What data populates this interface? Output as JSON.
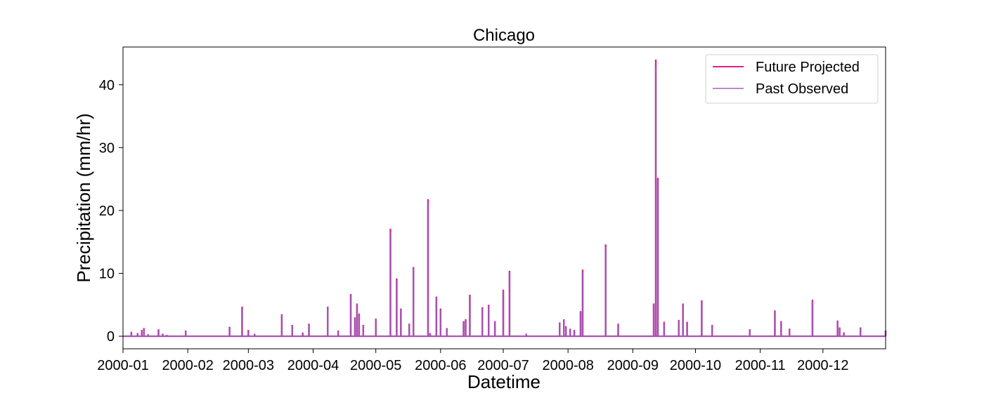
{
  "chart_data": {
    "type": "line",
    "title": "Chicago",
    "xlabel": "Datetime",
    "ylabel": "Precipitation (mm/hr)",
    "xlim": [
      "2000-01-01",
      "2000-12-31"
    ],
    "ylim": [
      -2,
      46
    ],
    "x_ticks": [
      "2000-01",
      "2000-02",
      "2000-03",
      "2000-04",
      "2000-05",
      "2000-06",
      "2000-07",
      "2000-08",
      "2000-09",
      "2000-10",
      "2000-11",
      "2000-12"
    ],
    "y_ticks": [
      0,
      10,
      20,
      30,
      40
    ],
    "grid": false,
    "legend_position": "top-right",
    "series": [
      {
        "name": "Future Projected",
        "color": "#e0218a",
        "x": [
          "2000-01-05",
          "2000-01-08",
          "2000-01-10",
          "2000-01-11",
          "2000-01-13",
          "2000-01-18",
          "2000-01-20",
          "2000-01-22",
          "2000-01-31",
          "2000-02-21",
          "2000-02-27",
          "2000-03-01",
          "2000-03-04",
          "2000-03-17",
          "2000-03-22",
          "2000-03-27",
          "2000-03-30",
          "2000-04-08",
          "2000-04-13",
          "2000-04-19",
          "2000-04-21",
          "2000-04-22",
          "2000-04-23",
          "2000-04-25",
          "2000-05-01",
          "2000-05-08",
          "2000-05-11",
          "2000-05-13",
          "2000-05-17",
          "2000-05-19",
          "2000-05-26",
          "2000-05-27",
          "2000-05-30",
          "2000-06-01",
          "2000-06-04",
          "2000-06-12",
          "2000-06-13",
          "2000-06-15",
          "2000-06-21",
          "2000-06-24",
          "2000-06-27",
          "2000-07-01",
          "2000-07-04",
          "2000-07-12",
          "2000-07-28",
          "2000-07-30",
          "2000-07-31",
          "2000-08-02",
          "2000-08-04",
          "2000-08-07",
          "2000-08-08",
          "2000-08-19",
          "2000-08-25",
          "2000-09-11",
          "2000-09-12",
          "2000-09-13",
          "2000-09-16",
          "2000-09-23",
          "2000-09-25",
          "2000-09-27",
          "2000-10-04",
          "2000-10-09",
          "2000-10-27",
          "2000-11-08",
          "2000-11-11",
          "2000-11-15",
          "2000-11-26",
          "2000-12-08",
          "2000-12-09",
          "2000-12-11",
          "2000-12-19",
          "2000-12-31"
        ],
        "y": [
          0.7,
          0.5,
          1.0,
          1.3,
          0.3,
          1.1,
          0.4,
          0.2,
          0.9,
          1.5,
          4.7,
          1.0,
          0.4,
          3.5,
          1.8,
          0.6,
          2.0,
          4.7,
          0.9,
          6.7,
          3.0,
          5.2,
          3.6,
          1.8,
          2.8,
          17.1,
          9.2,
          4.4,
          2.0,
          11.0,
          21.8,
          0.5,
          6.3,
          4.4,
          1.3,
          2.4,
          2.7,
          6.6,
          4.6,
          5.0,
          2.4,
          7.4,
          10.4,
          0.4,
          2.2,
          2.7,
          1.6,
          1.2,
          1.0,
          4.0,
          10.6,
          14.6,
          2.0,
          5.2,
          44.0,
          25.2,
          2.3,
          2.6,
          5.2,
          2.3,
          5.7,
          1.8,
          1.1,
          4.1,
          2.4,
          1.2,
          5.8,
          2.5,
          1.4,
          0.6,
          1.4,
          0.9
        ]
      },
      {
        "name": "Past Observed",
        "color": "#9b59b6",
        "x": [
          "2000-01-05",
          "2000-01-08",
          "2000-01-10",
          "2000-01-11",
          "2000-01-13",
          "2000-01-18",
          "2000-01-20",
          "2000-01-22",
          "2000-01-31",
          "2000-02-21",
          "2000-02-27",
          "2000-03-01",
          "2000-03-04",
          "2000-03-17",
          "2000-03-22",
          "2000-03-27",
          "2000-03-30",
          "2000-04-08",
          "2000-04-13",
          "2000-04-19",
          "2000-04-21",
          "2000-04-22",
          "2000-04-23",
          "2000-04-25",
          "2000-05-01",
          "2000-05-08",
          "2000-05-11",
          "2000-05-13",
          "2000-05-17",
          "2000-05-19",
          "2000-05-26",
          "2000-05-27",
          "2000-05-30",
          "2000-06-01",
          "2000-06-04",
          "2000-06-12",
          "2000-06-13",
          "2000-06-15",
          "2000-06-21",
          "2000-06-24",
          "2000-06-27",
          "2000-07-01",
          "2000-07-04",
          "2000-07-12",
          "2000-07-28",
          "2000-07-30",
          "2000-07-31",
          "2000-08-02",
          "2000-08-04",
          "2000-08-07",
          "2000-08-08",
          "2000-08-19",
          "2000-08-25",
          "2000-09-11",
          "2000-09-12",
          "2000-09-13",
          "2000-09-16",
          "2000-09-23",
          "2000-09-25",
          "2000-09-27",
          "2000-10-04",
          "2000-10-09",
          "2000-10-27",
          "2000-11-08",
          "2000-11-11",
          "2000-11-15",
          "2000-11-26",
          "2000-12-08",
          "2000-12-09",
          "2000-12-11",
          "2000-12-19",
          "2000-12-31"
        ],
        "y": [
          0.6,
          0.4,
          0.9,
          1.2,
          0.3,
          1.0,
          0.4,
          0.2,
          0.8,
          1.4,
          4.5,
          0.9,
          0.4,
          3.3,
          1.7,
          0.5,
          1.9,
          4.5,
          0.8,
          6.5,
          2.9,
          5.0,
          3.4,
          1.7,
          2.7,
          16.6,
          9.0,
          4.2,
          1.9,
          10.8,
          21.2,
          0.5,
          6.1,
          4.2,
          1.2,
          2.3,
          2.6,
          6.4,
          4.4,
          4.8,
          2.3,
          7.2,
          10.2,
          0.4,
          2.1,
          2.6,
          1.5,
          1.1,
          0.9,
          3.8,
          10.3,
          14.2,
          1.9,
          5.0,
          43.0,
          24.8,
          2.2,
          2.5,
          5.0,
          2.2,
          5.5,
          1.7,
          1.0,
          3.9,
          2.3,
          1.1,
          5.6,
          2.4,
          1.3,
          0.6,
          1.3,
          0.9
        ]
      }
    ]
  }
}
